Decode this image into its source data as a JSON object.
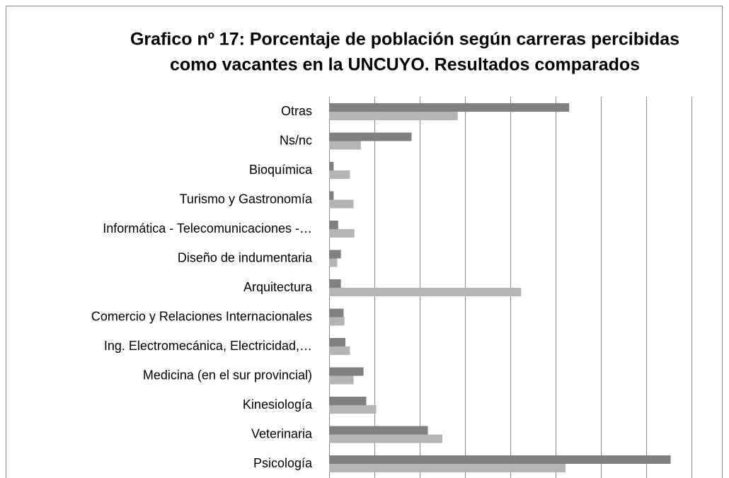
{
  "chart_data": {
    "type": "hbar",
    "title": [
      "Grafico nº 17: Porcentaje de población según carreras percibidas",
      "como vacantes en la UNCUYO. Resultados comparados"
    ],
    "categories": [
      "Otras",
      "Ns/nc",
      "Bioquímica",
      "Turismo y Gastronomía",
      "Informática - Telecomunicaciones -…",
      "Diseño de indumentaria",
      "Arquitectura",
      "Comercio y Relaciones Internacionales",
      "Ing. Electromecánica, Electricidad,…",
      "Medicina (en el sur provincial)",
      "Kinesiología",
      "Veterinaria",
      "Psicología"
    ],
    "series": [
      {
        "color": "#808080",
        "values": [
          26.5,
          9.1,
          0.5,
          0.5,
          1.0,
          1.3,
          1.3,
          1.6,
          1.8,
          3.8,
          4.1,
          10.9,
          37.7
        ]
      },
      {
        "color": "#b4b4b4",
        "values": [
          14.2,
          3.5,
          2.3,
          2.7,
          2.8,
          0.9,
          21.2,
          1.7,
          2.3,
          2.7,
          5.2,
          12.5,
          26.1
        ]
      }
    ],
    "xlim": [
      0,
      40
    ],
    "xticks": [
      0,
      5,
      10,
      15,
      20,
      25,
      30,
      35,
      40
    ],
    "grid": true
  }
}
